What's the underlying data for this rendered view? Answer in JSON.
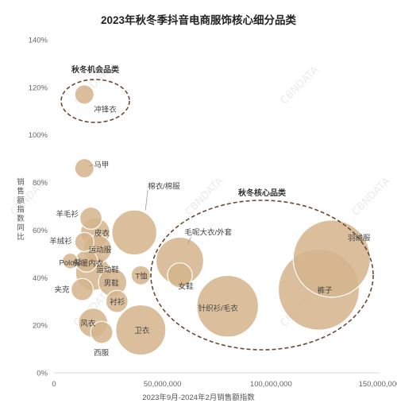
{
  "chart_data": {
    "type": "scatter",
    "subtype": "bubble",
    "title": "2023年秋冬季抖音电商服饰核心细分品类",
    "xlabel": "2023年9月-2024年2月销售额指数",
    "ylabel": "销售额指数同比",
    "xlim": [
      0,
      150000000
    ],
    "ylim": [
      0,
      140
    ],
    "x_ticks": [
      0,
      50000000,
      100000000,
      150000000
    ],
    "x_tick_labels": [
      "0",
      "50,000,000",
      "100,000,000",
      "150,000,000"
    ],
    "y_ticks": [
      0,
      20,
      40,
      60,
      80,
      100,
      120,
      140
    ],
    "y_tick_labels": [
      "0%",
      "20%",
      "40%",
      "60%",
      "80%",
      "100%",
      "120%",
      "140%"
    ],
    "grid": false,
    "bubble_color": "#d5b48c",
    "bubble_stroke": "#ffffff",
    "group_ellipse_color": "#6b4a33",
    "watermark": "CBNDATA",
    "points": [
      {
        "label": "冲锋衣",
        "x": 14000000,
        "y": 117,
        "size": 6
      },
      {
        "label": "马甲",
        "x": 14000000,
        "y": 86,
        "size": 6
      },
      {
        "label": "羊毛衫",
        "x": 17000000,
        "y": 65,
        "size": 8
      },
      {
        "label": "皮衣",
        "x": 19000000,
        "y": 59,
        "size": 14
      },
      {
        "label": "棉衣/棉服",
        "x": 37000000,
        "y": 59,
        "size": 33
      },
      {
        "label": "羊绒衫",
        "x": 14000000,
        "y": 55,
        "size": 6
      },
      {
        "label": "运动服",
        "x": 20000000,
        "y": 52,
        "size": 13
      },
      {
        "label": "Polo衫",
        "x": 7500000,
        "y": 47,
        "size": 4
      },
      {
        "label": "保暖内衣",
        "x": 15000000,
        "y": 47,
        "size": 8
      },
      {
        "label": "毛呢大衣/外套",
        "x": 58000000,
        "y": 47,
        "size": 37
      },
      {
        "label": "羽绒服",
        "x": 128000000,
        "y": 48,
        "size": 97
      },
      {
        "label": "运动鞋",
        "x": 18000000,
        "y": 42,
        "size": 20
      },
      {
        "label": "T恤",
        "x": 40000000,
        "y": 41,
        "size": 6
      },
      {
        "label": "男鞋",
        "x": 27000000,
        "y": 38,
        "size": 13
      },
      {
        "label": "女鞋",
        "x": 58000000,
        "y": 41,
        "size": 10
      },
      {
        "label": "夹克",
        "x": 13000000,
        "y": 35,
        "size": 8
      },
      {
        "label": "裤子",
        "x": 122000000,
        "y": 35,
        "size": 107
      },
      {
        "label": "针织衫/毛衣",
        "x": 80000000,
        "y": 28,
        "size": 62
      },
      {
        "label": "衬衫",
        "x": 29000000,
        "y": 30,
        "size": 8
      },
      {
        "label": "风衣",
        "x": 18000000,
        "y": 21,
        "size": 14
      },
      {
        "label": "卫衣",
        "x": 40000000,
        "y": 18,
        "size": 41
      },
      {
        "label": "西服",
        "x": 22000000,
        "y": 17,
        "size": 8
      }
    ],
    "groups": [
      {
        "label": "秋冬机会品类"
      },
      {
        "label": "秋冬核心品类"
      }
    ]
  }
}
